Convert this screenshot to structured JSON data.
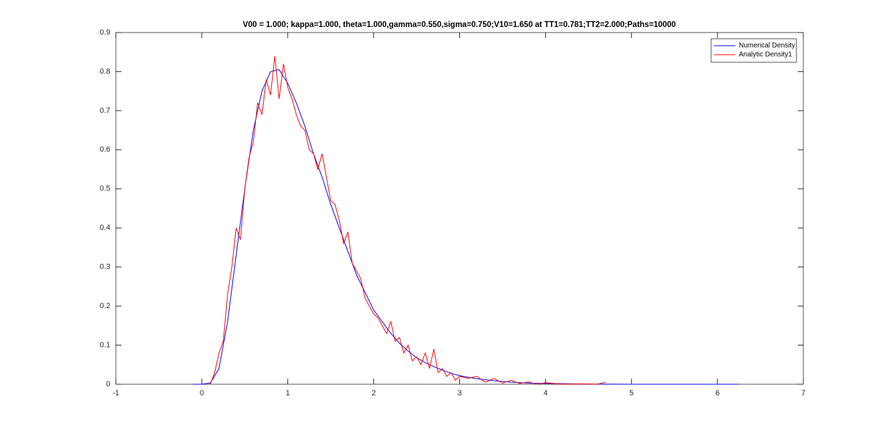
{
  "chart_data": {
    "type": "line",
    "title": "V00 = 1.000; kappa=1.000, theta=1.000,gamma=0.550,sigma=0.750;V10=1.650 at TT1=0.781;TT2=2.000;Paths=10000",
    "xlim": [
      -1,
      7
    ],
    "xticks": [
      -1,
      0,
      1,
      2,
      3,
      4,
      5,
      6,
      7
    ],
    "ylim": [
      0,
      0.9
    ],
    "yticks": [
      0,
      0.1,
      0.2,
      0.3,
      0.4,
      0.5,
      0.6,
      0.7,
      0.8,
      0.9
    ],
    "legend": "northeast",
    "grid": false,
    "series": [
      {
        "name": "Numerical Density",
        "color": "#0000ff",
        "x": [
          -0.1,
          0,
          0.1,
          0.2,
          0.3,
          0.4,
          0.5,
          0.6,
          0.7,
          0.8,
          0.9,
          1.0,
          1.1,
          1.2,
          1.3,
          1.4,
          1.5,
          1.6,
          1.7,
          1.8,
          1.9,
          2.0,
          2.1,
          2.2,
          2.3,
          2.4,
          2.5,
          2.6,
          2.7,
          2.8,
          2.9,
          3.0,
          3.2,
          3.4,
          3.6,
          3.8,
          4.0,
          4.5,
          5.0,
          5.5,
          6.0,
          6.25
        ],
        "values": [
          0,
          0,
          0.003,
          0.04,
          0.16,
          0.33,
          0.5,
          0.65,
          0.75,
          0.8,
          0.805,
          0.77,
          0.72,
          0.66,
          0.59,
          0.53,
          0.46,
          0.4,
          0.34,
          0.28,
          0.235,
          0.19,
          0.16,
          0.13,
          0.105,
          0.085,
          0.068,
          0.055,
          0.045,
          0.036,
          0.028,
          0.022,
          0.014,
          0.009,
          0.005,
          0.003,
          0.002,
          0.0005,
          0.0001,
          0,
          0,
          0
        ]
      },
      {
        "name": "Analytic Density1",
        "color": "#ff0000",
        "x": [
          0.1,
          0.15,
          0.2,
          0.25,
          0.3,
          0.35,
          0.4,
          0.45,
          0.5,
          0.55,
          0.6,
          0.65,
          0.7,
          0.75,
          0.8,
          0.85,
          0.9,
          0.95,
          1.0,
          1.05,
          1.1,
          1.15,
          1.2,
          1.25,
          1.3,
          1.35,
          1.4,
          1.45,
          1.5,
          1.55,
          1.6,
          1.65,
          1.7,
          1.75,
          1.8,
          1.85,
          1.9,
          1.95,
          2.0,
          2.05,
          2.1,
          2.15,
          2.2,
          2.25,
          2.3,
          2.35,
          2.4,
          2.45,
          2.5,
          2.55,
          2.6,
          2.65,
          2.7,
          2.75,
          2.8,
          2.85,
          2.9,
          2.95,
          3.0,
          3.1,
          3.2,
          3.3,
          3.4,
          3.5,
          3.6,
          3.7,
          3.8,
          3.9,
          4.0,
          4.1,
          4.2,
          4.4,
          4.6,
          4.7
        ],
        "values": [
          0,
          0.03,
          0.08,
          0.11,
          0.23,
          0.3,
          0.4,
          0.37,
          0.5,
          0.58,
          0.62,
          0.72,
          0.69,
          0.78,
          0.74,
          0.84,
          0.73,
          0.82,
          0.76,
          0.73,
          0.69,
          0.66,
          0.65,
          0.6,
          0.59,
          0.55,
          0.59,
          0.53,
          0.47,
          0.46,
          0.42,
          0.36,
          0.39,
          0.31,
          0.29,
          0.27,
          0.22,
          0.2,
          0.18,
          0.17,
          0.15,
          0.13,
          0.16,
          0.11,
          0.12,
          0.08,
          0.1,
          0.06,
          0.07,
          0.05,
          0.08,
          0.04,
          0.09,
          0.03,
          0.04,
          0.02,
          0.03,
          0.01,
          0.02,
          0.015,
          0.02,
          0.005,
          0.015,
          0.003,
          0.01,
          0.002,
          0.006,
          0,
          0.004,
          0.002,
          0,
          0.001,
          0,
          0.005
        ]
      }
    ]
  }
}
